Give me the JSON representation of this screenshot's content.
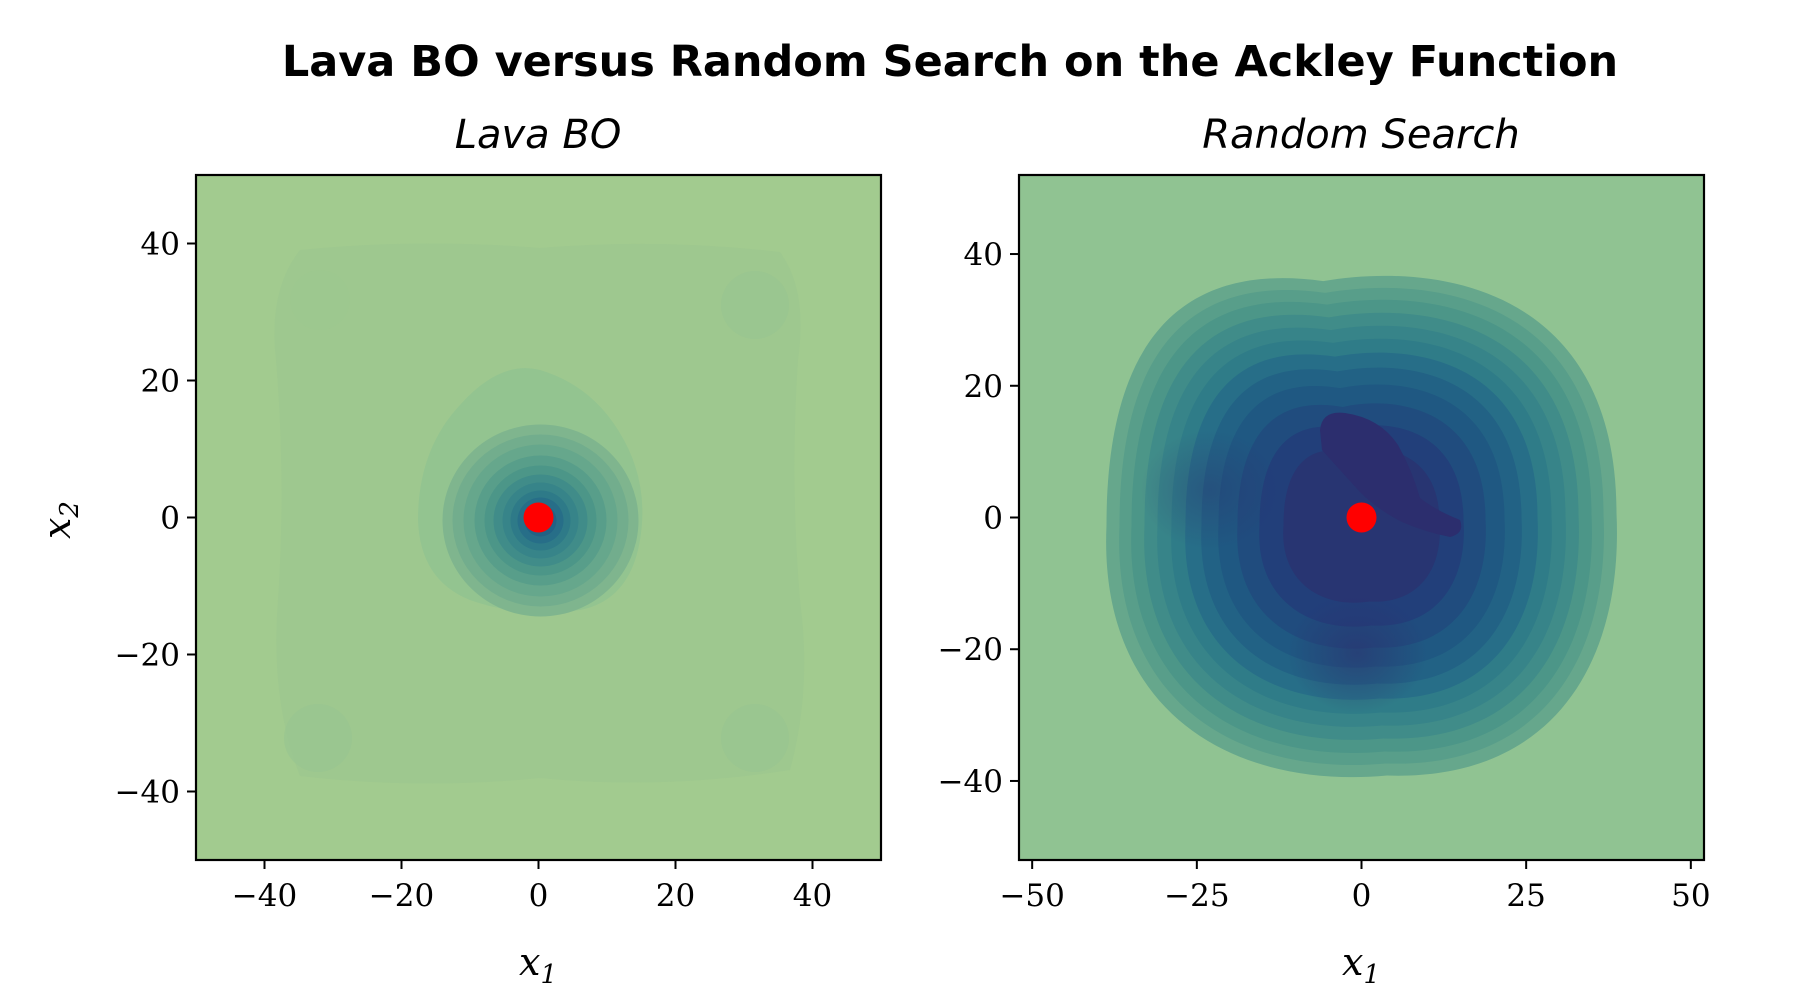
{
  "figure_title": "Lava BO versus Random Search on the Ackley Function",
  "colors": {
    "marker": "#ff0000",
    "colormap": [
      "#2c2e6e",
      "#223f7a",
      "#1f5882",
      "#276e88",
      "#378489",
      "#4c9688",
      "#66a78c",
      "#7fb58e",
      "#90c392",
      "#a2cb8f"
    ]
  },
  "chart_data": [
    {
      "type": "contour",
      "title": "Lava BO",
      "xlabel": "x_1",
      "ylabel": "x_2",
      "xlim": [
        -50,
        50
      ],
      "ylim": [
        -50,
        50
      ],
      "xticks": [
        -40,
        -20,
        0,
        20,
        40
      ],
      "yticks": [
        -40,
        -20,
        0,
        20,
        40
      ],
      "xtick_labels": [
        "−40",
        "−20",
        "0",
        "20",
        "40"
      ],
      "ytick_labels": [
        "−40",
        "−20",
        "0",
        "20",
        "40"
      ],
      "grid": false,
      "best_point": {
        "x": 0,
        "y": 0
      }
    },
    {
      "type": "contour",
      "title": "Random Search",
      "xlabel": "x_1",
      "ylabel": "",
      "xlim": [
        -52,
        52
      ],
      "ylim": [
        -52,
        52
      ],
      "xticks": [
        -50,
        -25,
        0,
        25,
        50
      ],
      "yticks": [
        -40,
        -20,
        0,
        20,
        40
      ],
      "xtick_labels": [
        "−50",
        "−25",
        "0",
        "25",
        "50"
      ],
      "ytick_labels": [
        "−40",
        "−20",
        "0",
        "20",
        "40"
      ],
      "grid": false,
      "best_point": {
        "x": 0,
        "y": 0
      }
    }
  ]
}
